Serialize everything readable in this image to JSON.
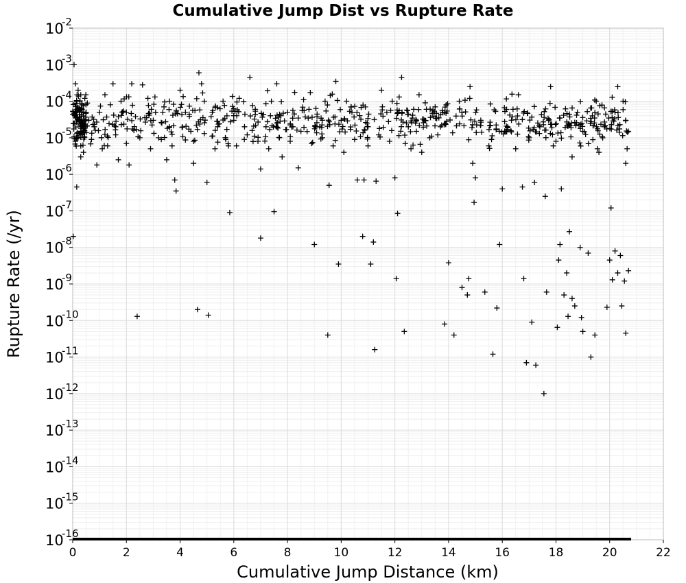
{
  "chart_data": {
    "type": "scatter",
    "title": "Cumulative Jump Dist vs Rupture Rate",
    "xlabel": "Cumulative Jump Distance (km)",
    "ylabel": "Rupture Rate (/yr)",
    "xlim": [
      0,
      22
    ],
    "ylim": [
      1e-16,
      0.01
    ],
    "yscale": "log",
    "grid": true,
    "marker": "plus",
    "marker_color": "#000000",
    "x_ticks": [
      "0",
      "2",
      "4",
      "6",
      "8",
      "10",
      "12",
      "14",
      "16",
      "18",
      "20",
      "22"
    ],
    "y_ticks": [
      {
        "base": "10",
        "exp": "-16"
      },
      {
        "base": "10",
        "exp": "-15"
      },
      {
        "base": "10",
        "exp": "-14"
      },
      {
        "base": "10",
        "exp": "-13"
      },
      {
        "base": "10",
        "exp": "-12"
      },
      {
        "base": "10",
        "exp": "-11"
      },
      {
        "base": "10",
        "exp": "-10"
      },
      {
        "base": "10",
        "exp": "-9"
      },
      {
        "base": "10",
        "exp": "-8"
      },
      {
        "base": "10",
        "exp": "-7"
      },
      {
        "base": "10",
        "exp": "-6"
      },
      {
        "base": "10",
        "exp": "-5"
      },
      {
        "base": "10",
        "exp": "-4"
      },
      {
        "base": "10",
        "exp": "-3"
      },
      {
        "base": "10",
        "exp": "-2"
      }
    ],
    "series": [
      {
        "points": [
          [
            0.05,
            2.5e-05
          ],
          [
            0.1,
            4e-05
          ],
          [
            0.15,
            0.0001
          ],
          [
            0.2,
            6e-05
          ],
          [
            0.25,
            3e-05
          ],
          [
            0.3,
            0.00015
          ],
          [
            0.35,
            8e-05
          ],
          [
            0.4,
            2e-05
          ],
          [
            0.45,
            0.00012
          ],
          [
            0.5,
            5e-05
          ],
          [
            0.1,
            8e-06
          ],
          [
            0.2,
            1e-05
          ],
          [
            0.3,
            6e-06
          ],
          [
            0.4,
            4e-06
          ],
          [
            0.05,
            0.001
          ],
          [
            0.1,
            0.0003
          ],
          [
            0.2,
            0.0002
          ],
          [
            0.3,
            3e-06
          ],
          [
            0.15,
            4.5e-07
          ],
          [
            0.02,
            2e-08
          ],
          [
            0.6,
            3e-05
          ],
          [
            0.8,
            2e-05
          ],
          [
            1.0,
            5e-05
          ],
          [
            1.2,
            0.00015
          ],
          [
            1.4,
            8e-05
          ],
          [
            1.5,
            0.0003
          ],
          [
            1.6,
            2e-05
          ],
          [
            1.8,
            0.0001
          ],
          [
            2.0,
            5e-05
          ],
          [
            2.2,
            0.0003
          ],
          [
            0.9,
            1.8e-06
          ],
          [
            1.3,
            6e-06
          ],
          [
            1.7,
            2.5e-06
          ],
          [
            2.1,
            1.8e-06
          ],
          [
            2.4,
            1.3e-10
          ],
          [
            2.6,
            0.00028
          ],
          [
            2.8,
            0.00012
          ],
          [
            3.0,
            3e-05
          ],
          [
            3.2,
            1e-05
          ],
          [
            3.4,
            7e-05
          ],
          [
            3.5,
            2.5e-06
          ],
          [
            3.6,
            2e-05
          ],
          [
            3.8,
            7e-07
          ],
          [
            3.85,
            3.5e-07
          ],
          [
            4.0,
            0.0002
          ],
          [
            4.2,
            5e-05
          ],
          [
            4.4,
            1.5e-05
          ],
          [
            4.5,
            2e-06
          ],
          [
            4.65,
            2e-10
          ],
          [
            4.7,
            0.0006
          ],
          [
            4.8,
            0.0003
          ],
          [
            4.9,
            0.0001
          ],
          [
            5.0,
            6e-07
          ],
          [
            5.05,
            1.4e-10
          ],
          [
            5.2,
            5e-05
          ],
          [
            5.4,
            2e-05
          ],
          [
            5.6,
            0.0001
          ],
          [
            5.8,
            6e-06
          ],
          [
            5.85,
            9e-08
          ],
          [
            6.0,
            3e-05
          ],
          [
            6.2,
            0.00012
          ],
          [
            6.4,
            2e-05
          ],
          [
            6.6,
            0.00045
          ],
          [
            6.8,
            6e-05
          ],
          [
            7.0,
            1.8e-08
          ],
          [
            7.0,
            1.4e-06
          ],
          [
            7.2,
            2e-05
          ],
          [
            7.4,
            0.0001
          ],
          [
            7.5,
            9.5e-08
          ],
          [
            7.6,
            0.0003
          ],
          [
            7.8,
            3e-06
          ],
          [
            8.0,
            5e-05
          ],
          [
            8.2,
            2e-05
          ],
          [
            8.4,
            1.5e-06
          ],
          [
            8.6,
            0.00011
          ],
          [
            8.8,
            6e-05
          ],
          [
            9.0,
            1.2e-08
          ],
          [
            9.2,
            2e-05
          ],
          [
            9.4,
            0.0001
          ],
          [
            9.5,
            4e-11
          ],
          [
            9.55,
            5e-07
          ],
          [
            9.8,
            0.00035
          ],
          [
            9.9,
            3.5e-09
          ],
          [
            10.0,
            3e-05
          ],
          [
            10.2,
            0.0001
          ],
          [
            10.4,
            5e-05
          ],
          [
            10.6,
            7e-07
          ],
          [
            10.8,
            2e-08
          ],
          [
            10.85,
            7e-07
          ],
          [
            11.0,
            2e-05
          ],
          [
            11.1,
            3.5e-09
          ],
          [
            11.2,
            1.4e-08
          ],
          [
            11.25,
            1.6e-11
          ],
          [
            11.3,
            6.5e-07
          ],
          [
            11.5,
            0.0002
          ],
          [
            11.7,
            5e-05
          ],
          [
            11.9,
            0.0001
          ],
          [
            12.0,
            8e-07
          ],
          [
            12.05,
            1.4e-09
          ],
          [
            12.1,
            8.5e-08
          ],
          [
            12.25,
            0.00045
          ],
          [
            12.35,
            5e-11
          ],
          [
            12.5,
            2e-05
          ],
          [
            12.7,
            6e-05
          ],
          [
            12.9,
            0.00015
          ],
          [
            13.1,
            3e-05
          ],
          [
            13.3,
            1e-05
          ],
          [
            13.5,
            7e-05
          ],
          [
            13.7,
            2e-05
          ],
          [
            13.85,
            8e-11
          ],
          [
            14.0,
            3.8e-09
          ],
          [
            14.2,
            4e-11
          ],
          [
            14.4,
            0.0001
          ],
          [
            14.5,
            8e-10
          ],
          [
            14.7,
            5e-10
          ],
          [
            14.75,
            1.4e-09
          ],
          [
            14.8,
            0.00025
          ],
          [
            14.95,
            1.7e-07
          ],
          [
            15.0,
            8e-07
          ],
          [
            15.2,
            3e-05
          ],
          [
            15.35,
            6e-10
          ],
          [
            15.5,
            6e-06
          ],
          [
            15.65,
            1.2e-11
          ],
          [
            15.8,
            2.2e-10
          ],
          [
            15.9,
            1.2e-08
          ],
          [
            16.0,
            4e-07
          ],
          [
            16.2,
            2e-05
          ],
          [
            16.4,
            6e-05
          ],
          [
            16.6,
            0.00015
          ],
          [
            16.75,
            4.5e-07
          ],
          [
            16.8,
            1.4e-09
          ],
          [
            16.9,
            7e-12
          ],
          [
            17.1,
            9e-11
          ],
          [
            17.2,
            6e-07
          ],
          [
            17.25,
            6e-12
          ],
          [
            17.4,
            2e-05
          ],
          [
            17.55,
            1e-12
          ],
          [
            17.6,
            2.5e-07
          ],
          [
            17.65,
            6e-10
          ],
          [
            17.8,
            0.00025
          ],
          [
            17.9,
            6e-06
          ],
          [
            18.05,
            6.5e-11
          ],
          [
            18.1,
            4.5e-09
          ],
          [
            18.15,
            1.2e-08
          ],
          [
            18.2,
            4e-07
          ],
          [
            18.3,
            5e-10
          ],
          [
            18.4,
            2e-09
          ],
          [
            18.45,
            1.3e-10
          ],
          [
            18.5,
            2.7e-08
          ],
          [
            18.6,
            4e-10
          ],
          [
            18.7,
            2.5e-10
          ],
          [
            18.8,
            5e-05
          ],
          [
            18.9,
            1e-08
          ],
          [
            18.95,
            1.2e-10
          ],
          [
            19.0,
            5e-11
          ],
          [
            19.2,
            7e-09
          ],
          [
            19.3,
            1e-11
          ],
          [
            19.45,
            4e-11
          ],
          [
            19.5,
            0.0001
          ],
          [
            19.9,
            2.3e-10
          ],
          [
            20.0,
            4.5e-09
          ],
          [
            20.05,
            1.2e-07
          ],
          [
            20.1,
            1.3e-09
          ],
          [
            20.2,
            8e-09
          ],
          [
            20.3,
            2e-09
          ],
          [
            20.4,
            6e-09
          ],
          [
            20.45,
            2.5e-10
          ],
          [
            20.55,
            1.2e-09
          ],
          [
            20.6,
            4.5e-11
          ],
          [
            20.7,
            2.3e-09
          ],
          [
            20.3,
            0.00025
          ],
          [
            20.5,
            0.0001
          ],
          [
            20.6,
            3e-05
          ],
          [
            20.7,
            1.5e-05
          ],
          [
            20.65,
            5e-06
          ],
          [
            20.6,
            2e-06
          ],
          [
            20.2,
            5e-05
          ],
          [
            19.8,
            2e-05
          ],
          [
            19.6,
            4e-06
          ],
          [
            19.0,
            1.5e-05
          ],
          [
            18.6,
            3e-06
          ],
          [
            18.0,
            8e-06
          ],
          [
            17.0,
            1e-05
          ],
          [
            16.5,
            5e-06
          ],
          [
            15.6,
            9e-06
          ],
          [
            14.9,
            2e-06
          ],
          [
            13.6,
            1.2e-05
          ],
          [
            13.0,
            4e-06
          ],
          [
            12.8,
            1.5e-05
          ],
          [
            12.6,
            5e-06
          ],
          [
            11.8,
            8e-06
          ],
          [
            11.4,
            1.2e-05
          ],
          [
            11.0,
            6e-06
          ],
          [
            10.5,
            9e-06
          ],
          [
            10.1,
            4e-06
          ],
          [
            9.7,
            6e-06
          ],
          [
            9.3,
            1e-05
          ],
          [
            8.9,
            7e-06
          ],
          [
            8.5,
            1.5e-05
          ],
          [
            8.1,
            8e-06
          ],
          [
            7.7,
            1e-05
          ],
          [
            7.3,
            5e-06
          ],
          [
            6.9,
            8e-06
          ],
          [
            6.5,
            1.2e-05
          ],
          [
            6.1,
            6e-06
          ],
          [
            5.7,
            9e-06
          ],
          [
            5.3,
            5e-06
          ],
          [
            4.9,
            1.3e-05
          ],
          [
            4.5,
            8e-06
          ],
          [
            4.1,
            1.1e-05
          ],
          [
            3.7,
            6e-06
          ],
          [
            3.3,
            9e-06
          ],
          [
            2.9,
            5e-06
          ],
          [
            2.5,
            1e-05
          ],
          [
            2.0,
            7e-06
          ],
          [
            1.6,
            1.2e-05
          ],
          [
            1.1,
            5e-06
          ],
          [
            0.7,
            9e-06
          ],
          [
            0.5,
            1.4e-05
          ],
          [
            0.35,
            2.2e-05
          ]
        ],
        "dense_band": {
          "x_range": [
            0,
            20.7
          ],
          "y_median": 3e-05,
          "y_spread_decades": 1.1,
          "count": 650
        },
        "zero_rate_band": {
          "x_range": [
            0,
            20.8
          ],
          "y": 1e-16
        }
      }
    ]
  }
}
